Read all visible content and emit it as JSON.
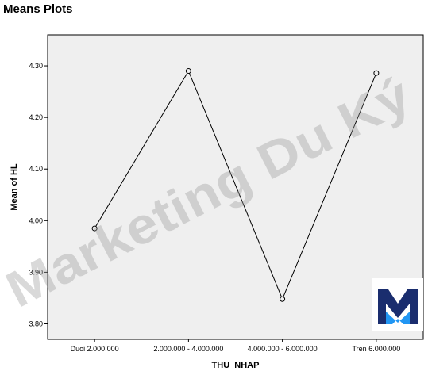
{
  "page": {
    "title": "Means Plots"
  },
  "watermark": {
    "text": "Marketing Du Ký"
  },
  "logo": {
    "name": "marketing-du-ky-logo",
    "bg_color": "#ffffff",
    "dark_color": "#1a2d6e",
    "light_color": "#2196f3"
  },
  "colors": {
    "plot_bg": "#efefef",
    "line": "#000000",
    "marker_fill": "#efefef"
  },
  "chart_data": {
    "type": "line",
    "title": "",
    "xlabel": "THU_NHAP",
    "ylabel": "Mean of HL",
    "categories": [
      "Duoi 2.000.000",
      "2.000.000 - 4.000.000",
      "4.000.000 - 6.000.000",
      "Tren 6.000.000"
    ],
    "series": [
      {
        "values": [
          3.985,
          4.29,
          3.848,
          4.286
        ]
      }
    ],
    "ylim": [
      3.77,
      4.36
    ],
    "yticks": [
      3.8,
      3.9,
      4.0,
      4.1,
      4.2,
      4.3
    ],
    "ytick_labels": [
      "3.80",
      "3.90",
      "4.00",
      "4.10",
      "4.20",
      "4.30"
    ],
    "markers": "open-circle",
    "grid": false,
    "legend": "none"
  }
}
